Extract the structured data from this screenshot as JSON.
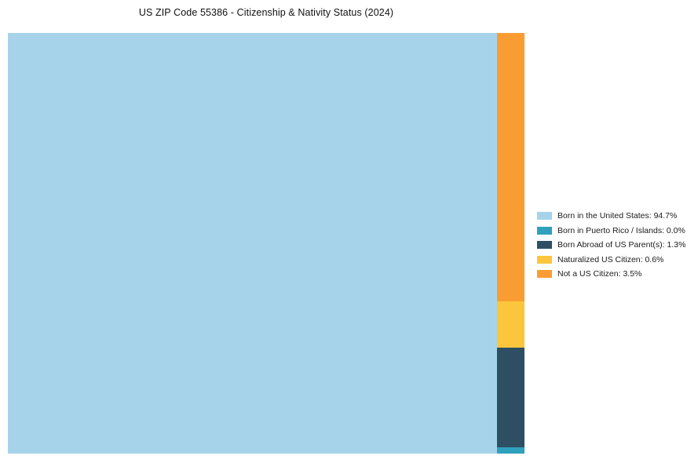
{
  "page": {
    "title": "US ZIP Code 55386 - Citizenship & Nativity Status (2024)"
  },
  "chart_data": {
    "type": "treemap",
    "title": "US ZIP Code 55386 - Citizenship & Nativity Status (2024)",
    "legend_position": "right",
    "series": [
      {
        "label": "Born in the United States",
        "value": 94.7,
        "color": "#A7D3EA",
        "legend_label": "Born in the United States: 94.7%"
      },
      {
        "label": "Born in Puerto Rico / Islands",
        "value": 0.0,
        "color": "#2FA1BC",
        "legend_label": "Born in Puerto Rico / Islands: 0.0%"
      },
      {
        "label": "Born Abroad of US Parent(s)",
        "value": 1.3,
        "color": "#2E4F63",
        "legend_label": "Born Abroad of US Parent(s): 1.3%"
      },
      {
        "label": "Naturalized US Citizen",
        "value": 0.6,
        "color": "#FCC63C",
        "legend_label": "Naturalized US Citizen: 0.6%"
      },
      {
        "label": "Not a US Citizen",
        "value": 3.5,
        "color": "#F99D33",
        "legend_label": "Not a US Citizen: 3.5%"
      }
    ],
    "layout": {
      "main_segment": "Born in the United States",
      "right_column_order_top_to_bottom": [
        "Not a US Citizen",
        "Naturalized US Citizen",
        "Born Abroad of US Parent(s)",
        "Born in Puerto Rico / Islands"
      ],
      "min_render_weight": 0.08
    }
  }
}
